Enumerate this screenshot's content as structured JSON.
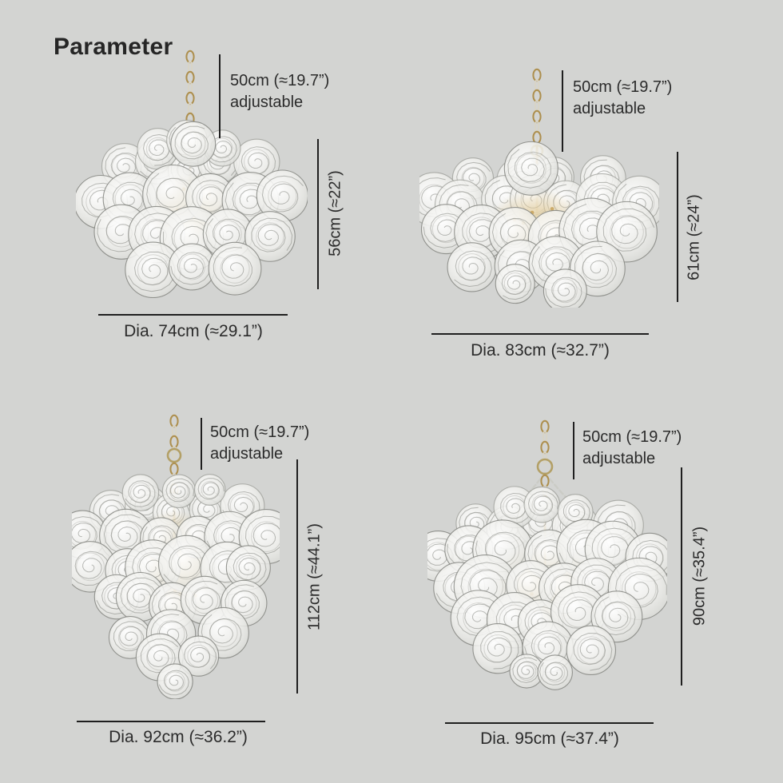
{
  "title": "Parameter",
  "products": [
    {
      "chain_length_line1": "50cm (≈19.7”)",
      "chain_length_line2": "adjustable",
      "height": "56cm (≈22”)",
      "diameter": "Dia. 74cm (≈29.1”)"
    },
    {
      "chain_length_line1": "50cm (≈19.7”)",
      "chain_length_line2": "adjustable",
      "height": "61cm (≈24”)",
      "diameter": "Dia. 83cm (≈32.7”)"
    },
    {
      "chain_length_line1": "50cm (≈19.7”)",
      "chain_length_line2": "adjustable",
      "height": "112cm (≈44.1”)",
      "diameter": "Dia. 92cm (≈36.2”)"
    },
    {
      "chain_length_line1": "50cm (≈19.7”)",
      "chain_length_line2": "adjustable",
      "height": "90cm (≈35.4”)",
      "diameter": "Dia. 95cm (≈37.4”)"
    }
  ],
  "colors": {
    "background": "#d3d4d2",
    "text": "#2b2b2b",
    "dimension_line": "#1f1f1f",
    "brass": "#ad8f4e",
    "glass_stroke": "#8c8d88",
    "glow": "#e7cf9b"
  }
}
